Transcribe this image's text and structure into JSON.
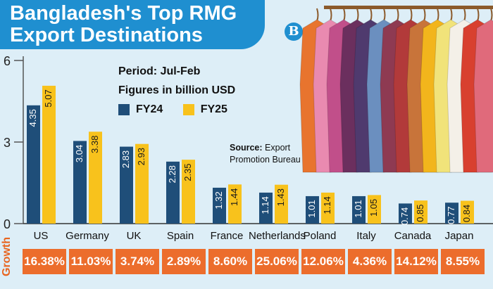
{
  "title": "Bangladesh's Top RMG Export Destinations",
  "logo_letter": "B",
  "period": "Period: Jul-Feb",
  "units": "Figures in billion USD",
  "source_label": "Source:",
  "source_text": "Export Promotion Bureau",
  "growth_label": "Growth",
  "colors": {
    "fy24": "#1f4e79",
    "fy25": "#f8c21c",
    "growth": "#ec6d2c",
    "header": "#1f8fd0"
  },
  "chart_data": {
    "type": "bar",
    "categories": [
      "US",
      "Germany",
      "UK",
      "Spain",
      "France",
      "Netherlands",
      "Poland",
      "Italy",
      "Canada",
      "Japan"
    ],
    "series": [
      {
        "name": "FY24",
        "values": [
          4.35,
          3.04,
          2.83,
          2.28,
          1.32,
          1.14,
          1.01,
          1.01,
          0.74,
          0.77
        ]
      },
      {
        "name": "FY25",
        "values": [
          5.07,
          3.38,
          2.93,
          2.35,
          1.44,
          1.43,
          1.14,
          1.05,
          0.85,
          0.84
        ]
      }
    ],
    "growth": [
      "16.38%",
      "11.03%",
      "3.74%",
      "2.89%",
      "8.60%",
      "25.06%",
      "12.06%",
      "4.36%",
      "14.12%",
      "8.55%"
    ],
    "yticks": [
      "6",
      "3",
      "0"
    ],
    "ylim": [
      0,
      6
    ]
  }
}
